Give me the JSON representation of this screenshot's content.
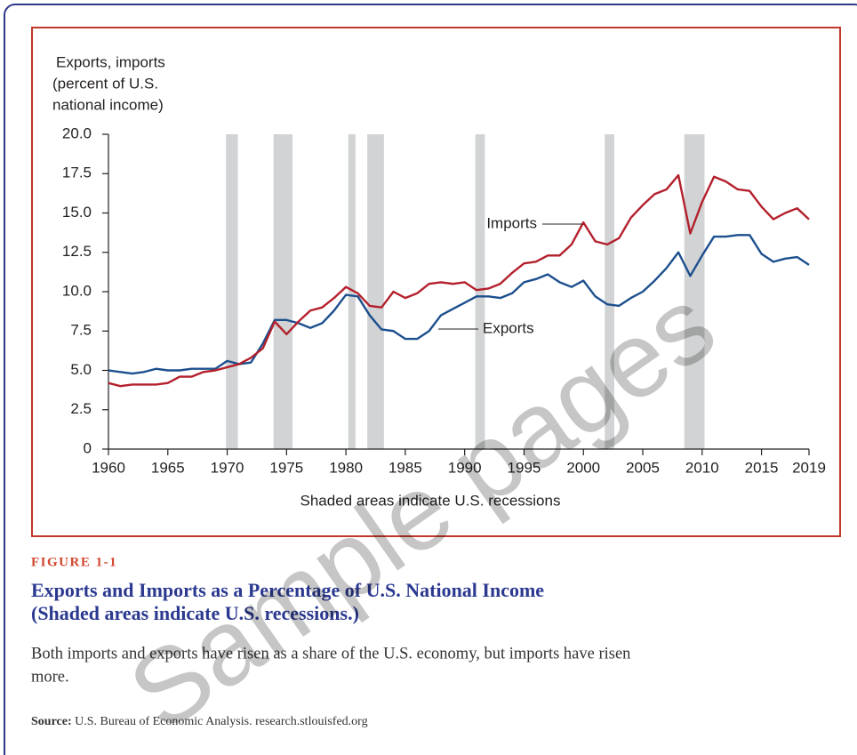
{
  "chart_data": {
    "type": "line",
    "ylabel": [
      "Exports, imports",
      "(percent of U.S.",
      "national income)"
    ],
    "note": "Shaded areas indicate U.S. recessions",
    "x": [
      1960,
      1961,
      1962,
      1963,
      1964,
      1965,
      1966,
      1967,
      1968,
      1969,
      1970,
      1971,
      1972,
      1973,
      1974,
      1975,
      1976,
      1977,
      1978,
      1979,
      1980,
      1981,
      1982,
      1983,
      1984,
      1985,
      1986,
      1987,
      1988,
      1989,
      1990,
      1991,
      1992,
      1993,
      1994,
      1995,
      1996,
      1997,
      1998,
      1999,
      2000,
      2001,
      2002,
      2003,
      2004,
      2005,
      2006,
      2007,
      2008,
      2009,
      2010,
      2011,
      2012,
      2013,
      2014,
      2015,
      2016,
      2017,
      2018,
      2019
    ],
    "series": [
      {
        "name": "Exports",
        "color": "#1c4f8e",
        "values": [
          5.0,
          4.9,
          4.8,
          4.9,
          5.1,
          5.0,
          5.0,
          5.1,
          5.1,
          5.1,
          5.6,
          5.4,
          5.5,
          6.7,
          8.2,
          8.2,
          8.0,
          7.7,
          8.0,
          8.8,
          9.8,
          9.7,
          8.5,
          7.6,
          7.5,
          7.0,
          7.0,
          7.5,
          8.5,
          8.9,
          9.3,
          9.7,
          9.7,
          9.6,
          9.9,
          10.6,
          10.8,
          11.1,
          10.6,
          10.3,
          10.7,
          9.7,
          9.2,
          9.1,
          9.6,
          10.0,
          10.7,
          11.5,
          12.5,
          11.0,
          12.3,
          13.5,
          13.5,
          13.6,
          13.6,
          12.4,
          11.9,
          12.1,
          12.2,
          11.7
        ]
      },
      {
        "name": "Imports",
        "color": "#b3202c",
        "values": [
          4.2,
          4.0,
          4.1,
          4.1,
          4.1,
          4.2,
          4.6,
          4.6,
          4.9,
          5.0,
          5.2,
          5.4,
          5.8,
          6.4,
          8.1,
          7.3,
          8.1,
          8.8,
          9.0,
          9.6,
          10.3,
          9.9,
          9.1,
          9.0,
          10.0,
          9.6,
          9.9,
          10.5,
          10.6,
          10.5,
          10.6,
          10.1,
          10.2,
          10.5,
          11.2,
          11.8,
          11.9,
          12.3,
          12.3,
          13.0,
          14.4,
          13.2,
          13.0,
          13.4,
          14.7,
          15.5,
          16.2,
          16.5,
          17.4,
          13.7,
          15.7,
          17.3,
          17.0,
          16.5,
          16.4,
          15.4,
          14.6,
          15.0,
          15.3,
          14.6
        ]
      }
    ],
    "recessions": [
      [
        1969.9,
        1970.9
      ],
      [
        1973.9,
        1975.5
      ],
      [
        1980.2,
        1980.8
      ],
      [
        1981.8,
        1983.2
      ],
      [
        1990.9,
        1991.7
      ],
      [
        2001.8,
        2002.6
      ],
      [
        2008.5,
        2010.2
      ]
    ],
    "recession_color": "#d1d3d4",
    "xlim": [
      1960,
      2019
    ],
    "xticks": [
      1960,
      1965,
      1970,
      1975,
      1980,
      1985,
      1990,
      1995,
      2000,
      2005,
      2010,
      2015,
      2019
    ],
    "ylim": [
      0,
      20
    ],
    "yticks": [
      0,
      2.5,
      {
        "value": 5,
        "label": "5.0"
      },
      7.5,
      {
        "value": 10,
        "label": "10.0"
      },
      12.5,
      {
        "value": 15,
        "label": "15.0"
      },
      17.5,
      {
        "value": 20,
        "label": "20.0"
      }
    ]
  },
  "figure": {
    "label": "FIGURE 1-1",
    "title_lines": [
      "Exports and Imports as a Percentage of U.S. National Income",
      "(Shaded areas indicate U.S. recessions.)"
    ],
    "caption_lines": [
      "Both imports and exports have risen as a share of the U.S. economy, but imports have risen",
      "more."
    ],
    "source_label": "Source:",
    "source_text": " U.S. Bureau of Economic Analysis. research.stlouisfed.org",
    "watermark": "Sample pages"
  }
}
